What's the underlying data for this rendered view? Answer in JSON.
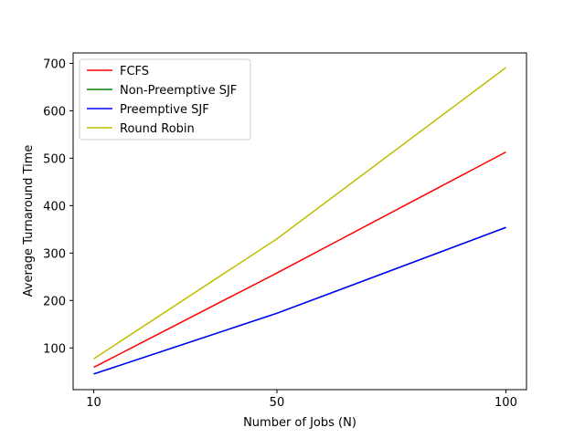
{
  "chart_data": {
    "type": "line",
    "title": "",
    "xlabel": "Number of Jobs (N)",
    "ylabel": "Average Turnaround Time",
    "x": [
      10,
      50,
      100
    ],
    "xticks": [
      10,
      50,
      100
    ],
    "yticks": [
      100,
      200,
      300,
      400,
      500,
      600,
      700
    ],
    "xlim": [
      5.5,
      104.5
    ],
    "ylim": [
      12,
      722
    ],
    "grid": false,
    "legend_position": "top-left",
    "series": [
      {
        "name": "FCFS",
        "color": "#ff0000",
        "values": [
          59,
          258,
          513
        ]
      },
      {
        "name": "Non-Preemptive SJF",
        "color": "#008000",
        "values": [
          45,
          173,
          354
        ]
      },
      {
        "name": "Preemptive SJF",
        "color": "#0000ff",
        "values": [
          45,
          173,
          354
        ]
      },
      {
        "name": "Round Robin",
        "color": "#bfbf00",
        "values": [
          77,
          330,
          691
        ]
      }
    ]
  }
}
